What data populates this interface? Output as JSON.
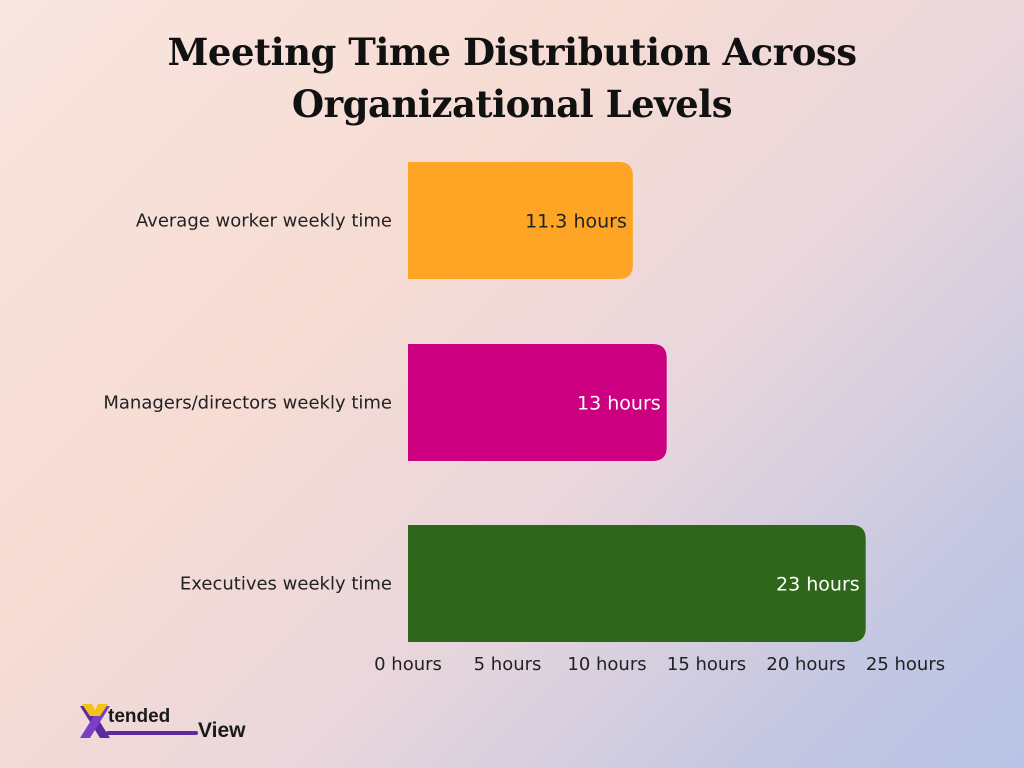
{
  "chart_data": {
    "type": "bar",
    "orientation": "horizontal",
    "title_lines": [
      "Meeting Time Distribution Across",
      "Organizational Levels"
    ],
    "categories": [
      "Average worker weekly time",
      "Managers/directors weekly time",
      "Executives weekly time"
    ],
    "values": [
      11.3,
      13,
      23
    ],
    "data_labels": [
      "11.3 hours",
      "13 hours",
      "23 hours"
    ],
    "colors": [
      "#ffa526",
      "#cc0080",
      "#2e661b"
    ],
    "x_ticks": [
      0,
      5,
      10,
      15,
      20,
      25
    ],
    "x_tick_labels": [
      "0 hours",
      "5 hours",
      "10 hours",
      "15 hours",
      "20 hours",
      "25 hours"
    ],
    "xlim": [
      0,
      25
    ],
    "grid": false,
    "legend": "none"
  },
  "logo": {
    "part1": "tended",
    "part2": "View"
  }
}
